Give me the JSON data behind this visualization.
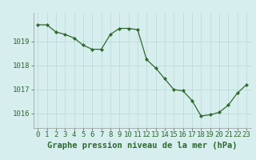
{
  "hours": [
    0,
    1,
    2,
    3,
    4,
    5,
    6,
    7,
    8,
    9,
    10,
    11,
    12,
    13,
    14,
    15,
    16,
    17,
    18,
    19,
    20,
    21,
    22,
    23
  ],
  "pressure": [
    1019.7,
    1019.7,
    1019.4,
    1019.3,
    1019.15,
    1018.85,
    1018.68,
    1018.68,
    1019.3,
    1019.55,
    1019.55,
    1019.5,
    1018.25,
    1017.9,
    1017.45,
    1017.0,
    1016.95,
    1016.55,
    1015.9,
    1015.95,
    1016.05,
    1016.35,
    1016.85,
    1017.2
  ],
  "line_color": "#2d6a2d",
  "marker_color": "#2d6a2d",
  "background_color": "#d7eeee",
  "grid_color": "#b8d8d8",
  "tick_label_color": "#2d6a2d",
  "xlabel": "Graphe pression niveau de la mer (hPa)",
  "xlabel_color": "#2d6a2d",
  "xlabel_fontsize": 7.5,
  "yticks": [
    1016,
    1017,
    1018,
    1019
  ],
  "ylim": [
    1015.4,
    1020.2
  ],
  "xlim": [
    -0.5,
    23.5
  ],
  "tick_fontsize": 6.5
}
